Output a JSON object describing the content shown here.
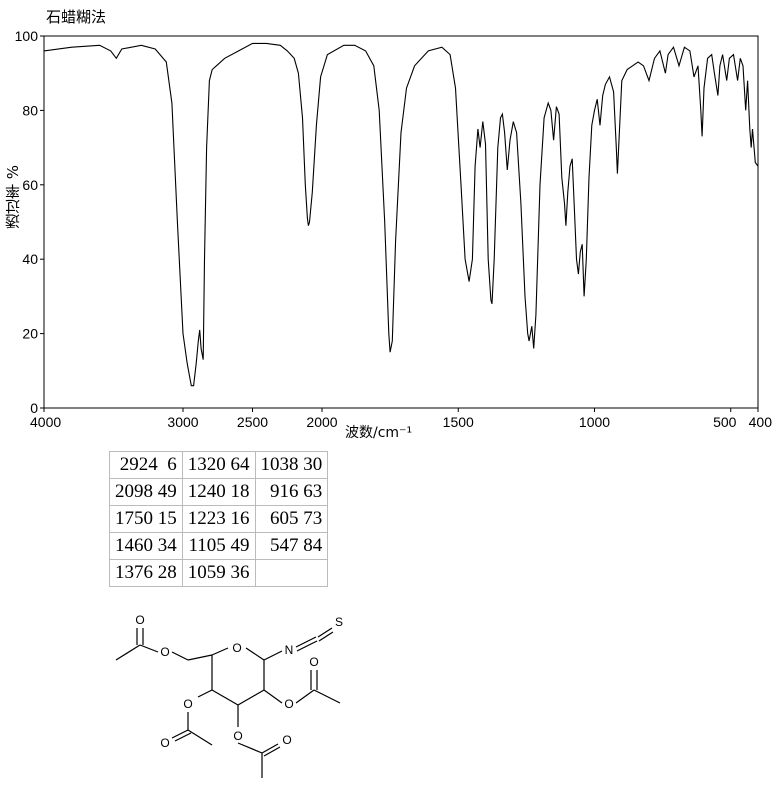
{
  "header": {
    "method": "石蜡糊法"
  },
  "chart_data": {
    "type": "line",
    "title": "石蜡糊法",
    "xlabel": "波数/cm⁻¹",
    "ylabel": "透过率 %",
    "xlim": [
      4000,
      400
    ],
    "ylim": [
      0,
      100
    ],
    "x_ticks": [
      "4000",
      "3000",
      "2500",
      "2000",
      "1500",
      "1000",
      "500",
      "400"
    ],
    "y_ticks": [
      "0",
      "20",
      "40",
      "60",
      "80",
      "100"
    ],
    "grid": false,
    "series": [
      {
        "points": [
          [
            4000,
            96
          ],
          [
            3800,
            97
          ],
          [
            3600,
            97.5
          ],
          [
            3520,
            96
          ],
          [
            3480,
            94
          ],
          [
            3440,
            96.5
          ],
          [
            3300,
            97.5
          ],
          [
            3200,
            96.5
          ],
          [
            3120,
            93
          ],
          [
            3080,
            82
          ],
          [
            3040,
            50
          ],
          [
            3000,
            20
          ],
          [
            2970,
            12
          ],
          [
            2950,
            8
          ],
          [
            2940,
            6
          ],
          [
            2924,
            6
          ],
          [
            2905,
            12
          ],
          [
            2890,
            18
          ],
          [
            2880,
            21
          ],
          [
            2870,
            16
          ],
          [
            2855,
            13
          ],
          [
            2845,
            40
          ],
          [
            2830,
            70
          ],
          [
            2810,
            88
          ],
          [
            2790,
            91
          ],
          [
            2760,
            92
          ],
          [
            2700,
            94
          ],
          [
            2600,
            96
          ],
          [
            2500,
            98
          ],
          [
            2400,
            98
          ],
          [
            2300,
            97.5
          ],
          [
            2250,
            96
          ],
          [
            2200,
            94
          ],
          [
            2170,
            90
          ],
          [
            2140,
            78
          ],
          [
            2120,
            60
          ],
          [
            2105,
            51
          ],
          [
            2098,
            49
          ],
          [
            2090,
            50
          ],
          [
            2070,
            58
          ],
          [
            2040,
            76
          ],
          [
            2010,
            89
          ],
          [
            1980,
            95
          ],
          [
            1920,
            97.5
          ],
          [
            1880,
            97.5
          ],
          [
            1840,
            96
          ],
          [
            1810,
            92
          ],
          [
            1790,
            80
          ],
          [
            1770,
            50
          ],
          [
            1755,
            20
          ],
          [
            1750,
            15
          ],
          [
            1742,
            18
          ],
          [
            1730,
            45
          ],
          [
            1710,
            74
          ],
          [
            1690,
            86
          ],
          [
            1660,
            92
          ],
          [
            1610,
            96
          ],
          [
            1560,
            97
          ],
          [
            1530,
            95
          ],
          [
            1510,
            86
          ],
          [
            1490,
            60
          ],
          [
            1475,
            40
          ],
          [
            1460,
            34
          ],
          [
            1448,
            40
          ],
          [
            1438,
            65
          ],
          [
            1428,
            75
          ],
          [
            1420,
            70
          ],
          [
            1410,
            77
          ],
          [
            1400,
            71
          ],
          [
            1390,
            40
          ],
          [
            1380,
            29
          ],
          [
            1376,
            28
          ],
          [
            1368,
            40
          ],
          [
            1355,
            70
          ],
          [
            1345,
            78
          ],
          [
            1338,
            79
          ],
          [
            1330,
            74
          ],
          [
            1320,
            64
          ],
          [
            1310,
            72
          ],
          [
            1298,
            77
          ],
          [
            1286,
            74
          ],
          [
            1270,
            55
          ],
          [
            1255,
            30
          ],
          [
            1245,
            20
          ],
          [
            1240,
            18
          ],
          [
            1230,
            22
          ],
          [
            1223,
            16
          ],
          [
            1215,
            25
          ],
          [
            1200,
            60
          ],
          [
            1185,
            78
          ],
          [
            1170,
            82
          ],
          [
            1160,
            80
          ],
          [
            1150,
            72
          ],
          [
            1140,
            81
          ],
          [
            1130,
            79
          ],
          [
            1120,
            62
          ],
          [
            1110,
            55
          ],
          [
            1105,
            49
          ],
          [
            1098,
            58
          ],
          [
            1090,
            65
          ],
          [
            1082,
            67
          ],
          [
            1074,
            54
          ],
          [
            1066,
            40
          ],
          [
            1059,
            36
          ],
          [
            1052,
            42
          ],
          [
            1045,
            44
          ],
          [
            1038,
            30
          ],
          [
            1030,
            40
          ],
          [
            1020,
            62
          ],
          [
            1010,
            76
          ],
          [
            1000,
            80
          ],
          [
            990,
            83
          ],
          [
            980,
            76
          ],
          [
            970,
            84
          ],
          [
            960,
            87
          ],
          [
            945,
            89
          ],
          [
            930,
            85
          ],
          [
            920,
            70
          ],
          [
            916,
            63
          ],
          [
            910,
            72
          ],
          [
            900,
            88
          ],
          [
            880,
            91
          ],
          [
            860,
            92
          ],
          [
            840,
            93
          ],
          [
            820,
            92
          ],
          [
            800,
            88
          ],
          [
            780,
            94
          ],
          [
            760,
            96
          ],
          [
            740,
            90
          ],
          [
            730,
            95
          ],
          [
            710,
            97
          ],
          [
            690,
            92
          ],
          [
            670,
            97
          ],
          [
            650,
            96
          ],
          [
            635,
            89
          ],
          [
            620,
            92
          ],
          [
            610,
            80
          ],
          [
            605,
            73
          ],
          [
            598,
            86
          ],
          [
            585,
            94
          ],
          [
            570,
            95
          ],
          [
            560,
            90
          ],
          [
            547,
            84
          ],
          [
            540,
            92
          ],
          [
            530,
            95
          ],
          [
            515,
            88
          ],
          [
            505,
            94
          ],
          [
            490,
            95
          ],
          [
            475,
            88
          ],
          [
            465,
            94
          ],
          [
            455,
            92
          ],
          [
            445,
            80
          ],
          [
            438,
            88
          ],
          [
            430,
            75
          ],
          [
            425,
            70
          ],
          [
            420,
            75
          ],
          [
            410,
            66
          ],
          [
            400,
            65
          ]
        ]
      }
    ]
  },
  "peak_table": {
    "columns": [
      [
        "2924  6",
        "2098 49",
        "1750 15",
        "1460 34",
        "1376 28"
      ],
      [
        "1320 64",
        "1240 18",
        "1223 16",
        "1105 49",
        "1059 36"
      ],
      [
        "1038 30",
        "  916 63",
        "  605 73",
        "  547 84",
        ""
      ]
    ]
  },
  "structure": {
    "atom_labels": [
      "O",
      "O",
      "O",
      "O",
      "O",
      "O",
      "O",
      "O",
      "O",
      "N",
      "S"
    ]
  }
}
